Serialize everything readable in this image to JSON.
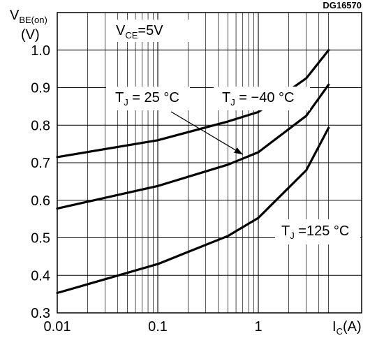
{
  "chart_data": {
    "type": "line",
    "title": "",
    "figure_code": "DG16570",
    "x_scale": "log",
    "xlim": [
      0.01,
      5
    ],
    "ylim": [
      0.3,
      1.1
    ],
    "grid": true,
    "x_ticks": [
      0.01,
      0.1,
      1
    ],
    "x_tick_labels": [
      "0.01",
      "0.1",
      "1"
    ],
    "y_ticks": [
      0.3,
      0.4,
      0.5,
      0.6,
      0.7,
      0.8,
      0.9,
      1.0
    ],
    "y_tick_labels": [
      "0.3",
      "0.4",
      "0.5",
      "0.6",
      "0.7",
      "0.8",
      "0.9",
      "1.0"
    ],
    "xlabel": {
      "main": "I",
      "sub": "C",
      "unit": "(A)"
    },
    "ylabel": {
      "main": "V",
      "sub": "BE(on)",
      "unit": "(V)"
    },
    "condition": {
      "main": "V",
      "sub": "CE",
      "text": "=5V"
    },
    "series": [
      {
        "name": "TJ = -40 °C",
        "x": [
          0.01,
          0.1,
          0.5,
          1,
          3,
          5
        ],
        "y": [
          0.715,
          0.76,
          0.81,
          0.835,
          0.925,
          1.0
        ]
      },
      {
        "name": "TJ = 25 °C",
        "x": [
          0.01,
          0.1,
          0.5,
          1,
          3,
          5
        ],
        "y": [
          0.578,
          0.638,
          0.695,
          0.728,
          0.825,
          0.908
        ]
      },
      {
        "name": "TJ = 125 °C",
        "x": [
          0.01,
          0.1,
          0.5,
          1,
          3,
          5
        ],
        "y": [
          0.353,
          0.43,
          0.505,
          0.553,
          0.68,
          0.793
        ]
      }
    ],
    "annotations": [
      {
        "id": "t25",
        "main": "T",
        "sub": "J",
        "text": " = 25 °C"
      },
      {
        "id": "tm40",
        "main": "T",
        "sub": "J",
        "text": " = −40 °C"
      },
      {
        "id": "t125",
        "main": "T",
        "sub": "J",
        "text": " =125 °C"
      }
    ]
  }
}
